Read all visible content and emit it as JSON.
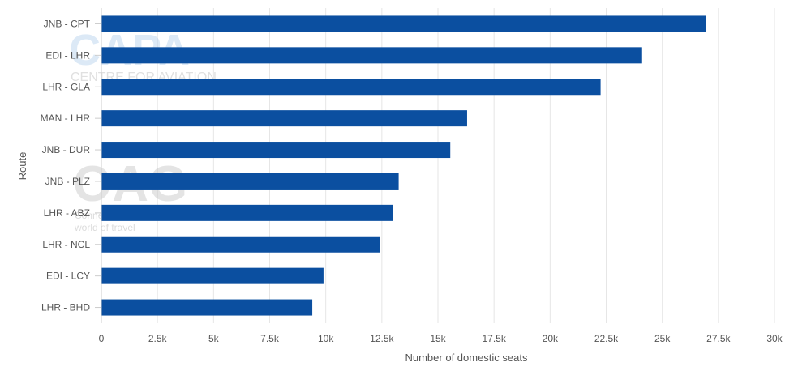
{
  "chart_data": {
    "type": "bar",
    "orientation": "horizontal",
    "categories": [
      "JNB - CPT",
      "EDI - LHR",
      "LHR - GLA",
      "MAN - LHR",
      "JNB - DUR",
      "JNB - PLZ",
      "LHR - ABZ",
      "LHR - NCL",
      "EDI - LCY",
      "LHR - BHD"
    ],
    "series": [
      {
        "values": [
          26950,
          24100,
          22250,
          16300,
          15550,
          13250,
          13000,
          12400,
          9900,
          9400
        ]
      }
    ],
    "xlabel": "Number of domestic seats",
    "ylabel": "Route",
    "xlim": [
      0,
      30000
    ],
    "xticks": [
      0,
      2500,
      5000,
      7500,
      10000,
      12500,
      15000,
      17500,
      20000,
      22500,
      25000,
      27500,
      30000
    ],
    "xtick_labels": [
      "0",
      "2.5k",
      "5k",
      "7.5k",
      "10k",
      "12.5k",
      "15k",
      "17.5k",
      "20k",
      "22.5k",
      "25k",
      "27.5k",
      "30k"
    ],
    "grid": true,
    "bar_color": "#0b4fa0"
  },
  "watermarks": {
    "capa_logo": "CAPA",
    "capa_subtitle": "CENTRE FOR AVIATION",
    "oag_logo": "OAG",
    "oag_tagline_1": "Connecting the",
    "oag_tagline_2": "world of travel"
  }
}
